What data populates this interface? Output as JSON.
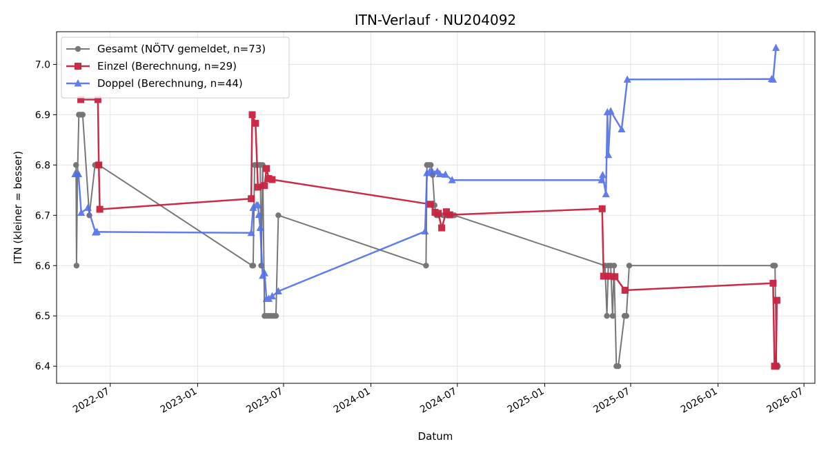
{
  "chart_data": {
    "type": "line",
    "title": "ITN-Verlauf · NU204092",
    "xlabel": "Datum",
    "ylabel": "ITN  (kleiner = besser)",
    "x_type": "date",
    "xlim": [
      "2022-03-10",
      "2026-07-24"
    ],
    "ylim": [
      6.366,
      7.065
    ],
    "x_ticks": [
      "2022-07-01",
      "2023-01-01",
      "2023-07-01",
      "2024-01-01",
      "2024-07-01",
      "2025-01-01",
      "2025-07-01",
      "2026-01-01",
      "2026-07-01"
    ],
    "x_tick_labels": [
      "2022-07",
      "2023-01",
      "2023-07",
      "2024-01",
      "2024-07",
      "2025-01",
      "2025-07",
      "2026-01",
      "2026-07"
    ],
    "y_ticks": [
      6.4,
      6.5,
      6.6,
      6.7,
      6.8,
      6.9,
      7.0
    ],
    "y_tick_labels": [
      "6.4",
      "6.5",
      "6.6",
      "6.7",
      "6.8",
      "6.9",
      "7.0"
    ],
    "grid": true,
    "legend_position": "top-left",
    "series": [
      {
        "name": "Gesamt (NÖTV gemeldet, n=73)",
        "color": "#4a4a4a",
        "marker": "circle",
        "points": [
          [
            "2022-04-20",
            6.8
          ],
          [
            "2022-04-21",
            6.6
          ],
          [
            "2022-04-23",
            6.78
          ],
          [
            "2022-04-26",
            6.9
          ],
          [
            "2022-04-30",
            6.9
          ],
          [
            "2022-05-04",
            6.9
          ],
          [
            "2022-05-18",
            6.7
          ],
          [
            "2022-05-30",
            6.8
          ],
          [
            "2022-06-05",
            6.8
          ],
          [
            "2022-06-07",
            6.8
          ],
          [
            "2023-04-26",
            6.6
          ],
          [
            "2023-04-28",
            6.6
          ],
          [
            "2023-05-01",
            6.8
          ],
          [
            "2023-05-05",
            6.8
          ],
          [
            "2023-05-10",
            6.8
          ],
          [
            "2023-05-13",
            6.8
          ],
          [
            "2023-05-15",
            6.6
          ],
          [
            "2023-05-18",
            6.8
          ],
          [
            "2023-05-22",
            6.5
          ],
          [
            "2023-05-26",
            6.5
          ],
          [
            "2023-05-31",
            6.5
          ],
          [
            "2023-06-05",
            6.5
          ],
          [
            "2023-06-10",
            6.5
          ],
          [
            "2023-06-15",
            6.5
          ],
          [
            "2023-06-20",
            6.7
          ],
          [
            "2024-04-26",
            6.6
          ],
          [
            "2024-04-28",
            6.8
          ],
          [
            "2024-05-02",
            6.8
          ],
          [
            "2024-05-06",
            6.8
          ],
          [
            "2024-05-10",
            6.78
          ],
          [
            "2024-05-14",
            6.72
          ],
          [
            "2024-05-18",
            6.7
          ],
          [
            "2024-05-22",
            6.7
          ],
          [
            "2024-06-01",
            6.7
          ],
          [
            "2024-06-05",
            6.7
          ],
          [
            "2024-06-10",
            6.7
          ],
          [
            "2024-06-15",
            6.7
          ],
          [
            "2024-06-20",
            6.7
          ],
          [
            "2024-06-25",
            6.7
          ],
          [
            "2025-05-08",
            6.6
          ],
          [
            "2025-05-12",
            6.5
          ],
          [
            "2025-05-15",
            6.6
          ],
          [
            "2025-05-20",
            6.6
          ],
          [
            "2025-05-24",
            6.5
          ],
          [
            "2025-05-27",
            6.6
          ],
          [
            "2025-06-01",
            6.4
          ],
          [
            "2025-06-05",
            6.4
          ],
          [
            "2025-06-18",
            6.5
          ],
          [
            "2025-06-22",
            6.5
          ],
          [
            "2025-06-28",
            6.6
          ],
          [
            "2026-04-27",
            6.6
          ],
          [
            "2026-04-29",
            6.6
          ],
          [
            "2026-05-01",
            6.6
          ],
          [
            "2026-05-04",
            6.4
          ],
          [
            "2026-05-07",
            6.4
          ]
        ]
      },
      {
        "name": "Einzel (Berechnung, n=29)",
        "color": "#c8203e",
        "marker": "square",
        "points": [
          [
            "2022-04-30",
            6.93
          ],
          [
            "2022-06-05",
            6.93
          ],
          [
            "2022-06-07",
            6.8
          ],
          [
            "2022-06-09",
            6.712
          ],
          [
            "2023-04-24",
            6.733
          ],
          [
            "2023-04-26",
            6.9
          ],
          [
            "2023-05-03",
            6.883
          ],
          [
            "2023-05-08",
            6.756
          ],
          [
            "2023-05-22",
            6.759
          ],
          [
            "2023-05-26",
            6.793
          ],
          [
            "2023-05-31",
            6.773
          ],
          [
            "2023-06-07",
            6.771
          ],
          [
            "2024-05-05",
            6.722
          ],
          [
            "2024-05-15",
            6.706
          ],
          [
            "2024-05-22",
            6.704
          ],
          [
            "2024-05-29",
            6.675
          ],
          [
            "2024-06-08",
            6.707
          ],
          [
            "2024-06-15",
            6.701
          ],
          [
            "2025-05-02",
            6.713
          ],
          [
            "2025-05-05",
            6.579
          ],
          [
            "2025-05-15",
            6.579
          ],
          [
            "2025-05-29",
            6.578
          ],
          [
            "2025-06-19",
            6.551
          ],
          [
            "2026-04-27",
            6.565
          ],
          [
            "2026-04-30",
            6.4
          ],
          [
            "2026-05-03",
            6.4
          ],
          [
            "2026-05-05",
            6.531
          ]
        ]
      },
      {
        "name": "Doppel (Berechnung, n=44)",
        "color": "#4f6fe8",
        "marker": "triangle",
        "points": [
          [
            "2022-04-18",
            6.782
          ],
          [
            "2022-04-25",
            6.782
          ],
          [
            "2022-05-01",
            6.705
          ],
          [
            "2022-05-15",
            6.715
          ],
          [
            "2022-05-31",
            6.666
          ],
          [
            "2022-06-03",
            6.667
          ],
          [
            "2023-04-24",
            6.665
          ],
          [
            "2023-04-28",
            6.715
          ],
          [
            "2023-05-05",
            6.72
          ],
          [
            "2023-05-08",
            6.72
          ],
          [
            "2023-05-10",
            6.701
          ],
          [
            "2023-05-13",
            6.675
          ],
          [
            "2023-05-18",
            6.58
          ],
          [
            "2023-05-22",
            6.585
          ],
          [
            "2023-05-26",
            6.534
          ],
          [
            "2023-05-31",
            6.534
          ],
          [
            "2023-06-07",
            6.539
          ],
          [
            "2023-06-20",
            6.549
          ],
          [
            "2024-04-24",
            6.668
          ],
          [
            "2024-04-28",
            6.784
          ],
          [
            "2024-05-04",
            6.787
          ],
          [
            "2024-05-09",
            6.787
          ],
          [
            "2024-05-20",
            6.787
          ],
          [
            "2024-05-25",
            6.782
          ],
          [
            "2024-06-06",
            6.781
          ],
          [
            "2024-06-20",
            6.77
          ],
          [
            "2025-05-01",
            6.77
          ],
          [
            "2025-05-03",
            6.78
          ],
          [
            "2025-05-10",
            6.742
          ],
          [
            "2025-05-13",
            6.905
          ],
          [
            "2025-05-15",
            6.82
          ],
          [
            "2025-05-20",
            6.907
          ],
          [
            "2025-06-12",
            6.871
          ],
          [
            "2025-06-24",
            6.97
          ],
          [
            "2026-04-24",
            6.971
          ],
          [
            "2026-04-27",
            6.97
          ],
          [
            "2026-05-03",
            7.033
          ]
        ]
      }
    ]
  }
}
